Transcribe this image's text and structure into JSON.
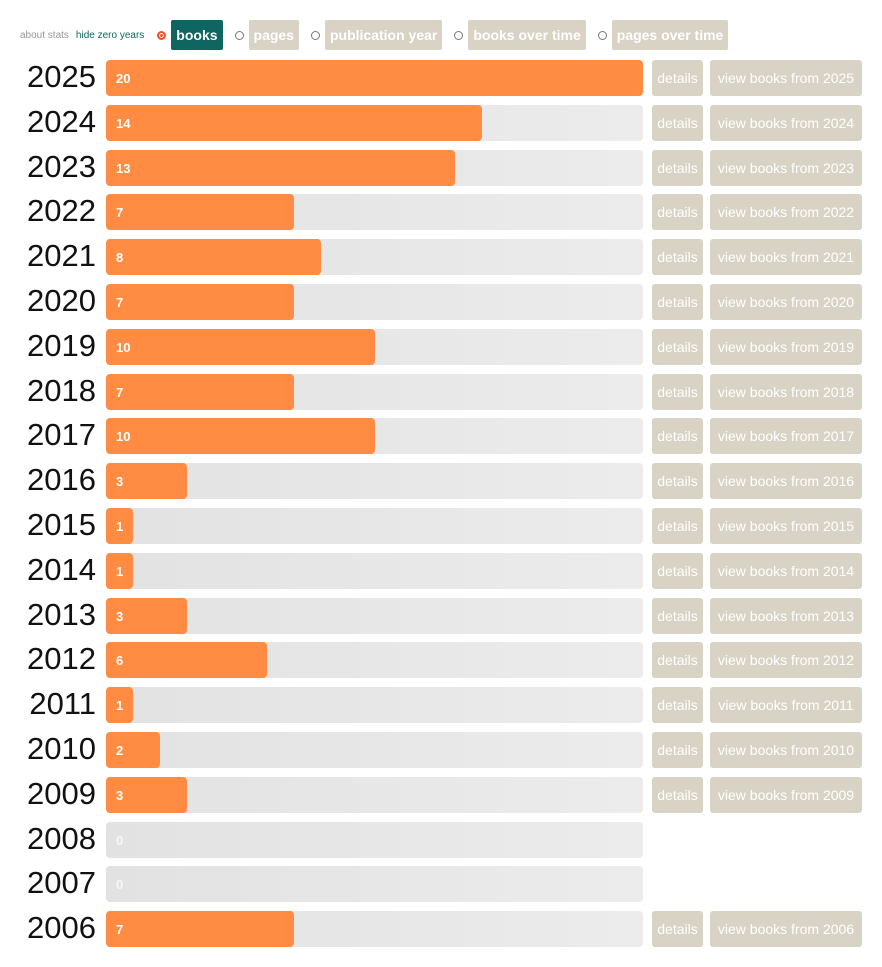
{
  "controls": {
    "about": "about stats",
    "hide_zero": "hide zero years",
    "options": [
      "books",
      "pages",
      "publication year",
      "books over time",
      "pages over time"
    ],
    "selected": 0
  },
  "chart_data": {
    "type": "bar",
    "orientation": "horizontal",
    "color": "#ff8c42",
    "categories": [
      "2025",
      "2024",
      "2023",
      "2022",
      "2021",
      "2020",
      "2019",
      "2018",
      "2017",
      "2016",
      "2015",
      "2014",
      "2013",
      "2012",
      "2011",
      "2010",
      "2009",
      "2008",
      "2007",
      "2006"
    ],
    "values": [
      20,
      14,
      13,
      7,
      8,
      7,
      10,
      7,
      10,
      3,
      1,
      1,
      3,
      6,
      1,
      2,
      3,
      0,
      0,
      7
    ],
    "xlim": [
      0,
      20
    ],
    "details_label": "details",
    "links": [
      "view books from 2025",
      "view books from 2024",
      "view books from 2023",
      "view books from 2022",
      "view books from 2021",
      "view books from 2020",
      "view books from 2019",
      "view books from 2018",
      "view books from 2017",
      "view books from 2016",
      "view books from 2015",
      "view books from 2014",
      "view books from 2013",
      "view books from 2012",
      "view books from 2011",
      "view books from 2010",
      "view books from 2009",
      null,
      null,
      "view books from 2006"
    ]
  }
}
